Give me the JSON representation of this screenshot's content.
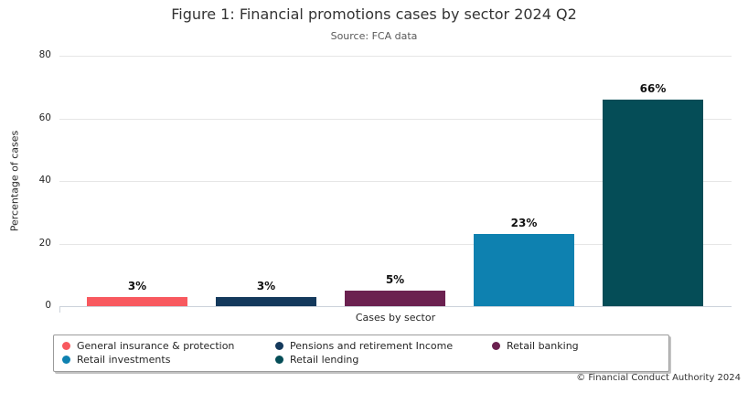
{
  "figure": {
    "title": "Figure 1: Financial promotions cases by sector 2024 Q2",
    "subtitle": "Source: FCA data",
    "footer": "© Financial Conduct Authority 2024"
  },
  "chart_data": {
    "type": "bar",
    "title": "Figure 1: Financial promotions cases by sector 2024 Q2",
    "subtitle": "Source: FCA data",
    "xlabel": "Cases by sector",
    "ylabel": "Percentage of cases",
    "ylim": [
      0,
      80
    ],
    "yticks": [
      0,
      20,
      40,
      60,
      80
    ],
    "grid": "horizontal-light",
    "legend_position": "bottom-box",
    "categories": [
      "General insurance & protection",
      "Pensions and retirement Income",
      "Retail banking",
      "Retail investments",
      "Retail lending"
    ],
    "values": [
      3,
      3,
      5,
      23,
      66
    ],
    "bar_labels": [
      "3%",
      "3%",
      "5%",
      "23%",
      "66%"
    ],
    "colors": [
      "#F8595F",
      "#14395C",
      "#6B2150",
      "#0E81B0",
      "#054D57"
    ],
    "legend_column_major_indices": [
      0,
      3,
      1,
      4,
      2
    ]
  }
}
